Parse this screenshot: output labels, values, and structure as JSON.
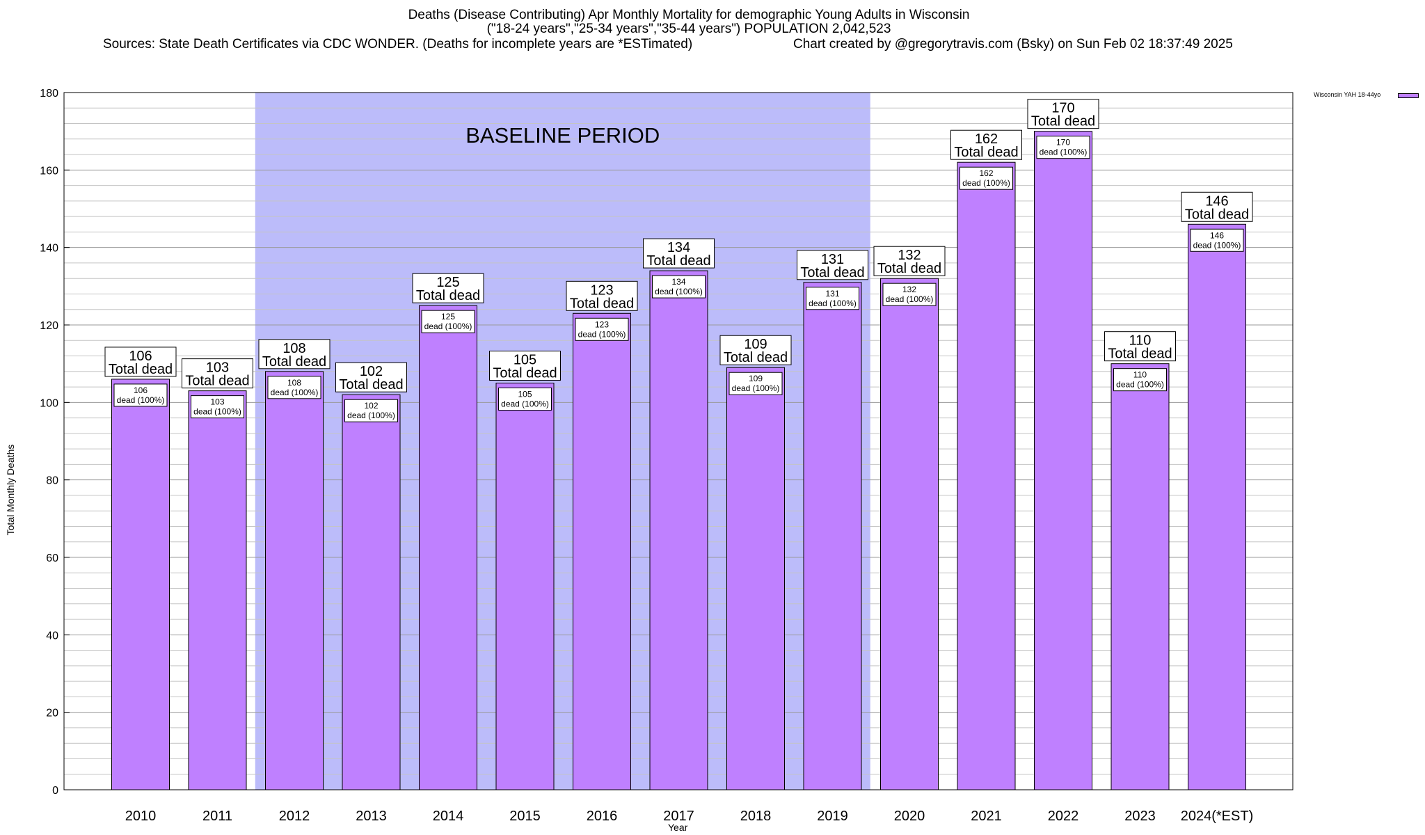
{
  "title_lines": [
    "Deaths (Disease Contributing) Apr Monthly Mortality for demographic Young Adults in Wisconsin",
    "(\"18-24 years\",\"25-34 years\",\"35-44 years\") POPULATION 2,042,523"
  ],
  "sources": "Sources: State Death Certificates via CDC WONDER. (Deaths for incomplete years are *ESTimated)",
  "credit": "Chart created by @gregorytravis.com (Bsky) on Sun Feb 02 18:37:49 2025",
  "legend": {
    "label": "Wisconsin YAH 18-44yo",
    "color": "#bf80ff"
  },
  "baseline": {
    "label": "BASELINE PERIOD",
    "start": "2012",
    "end": "2019",
    "color": "#bcbcfa"
  },
  "chart_data": {
    "type": "bar",
    "title": "Deaths (Disease Contributing) Apr Monthly Mortality for demographic Young Adults in Wisconsin",
    "xlabel": "Year",
    "ylabel": "Total Monthly Deaths",
    "ylim": [
      0,
      180
    ],
    "yticks": [
      0,
      20,
      40,
      60,
      80,
      100,
      120,
      140,
      160,
      180
    ],
    "grid": true,
    "legend_position": "top-right",
    "categories": [
      "2010",
      "2011",
      "2012",
      "2013",
      "2014",
      "2015",
      "2016",
      "2017",
      "2018",
      "2019",
      "2020",
      "2021",
      "2022",
      "2023",
      "2024(*EST)"
    ],
    "series": [
      {
        "name": "Wisconsin YAH 18-44yo",
        "color": "#bf80ff",
        "values": [
          106,
          103,
          108,
          102,
          125,
          105,
          123,
          134,
          109,
          131,
          132,
          162,
          170,
          110,
          146
        ]
      }
    ],
    "total_label": "Total dead",
    "inner_label": "dead (100%)"
  }
}
